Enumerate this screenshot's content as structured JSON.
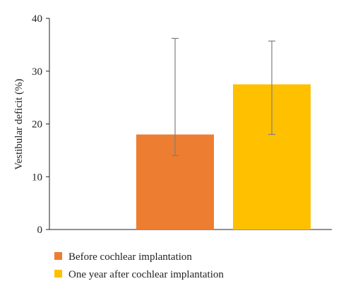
{
  "chart_data": {
    "type": "bar",
    "title": "",
    "xlabel": "",
    "ylabel": "Vestibular deficit (%)",
    "ylim": [
      0,
      40
    ],
    "yticks": [
      0,
      10,
      20,
      30,
      40
    ],
    "grid": false,
    "legend_position": "bottom-left",
    "series": [
      {
        "name": "Before cochlear implantation",
        "value": 18,
        "error_low": 14,
        "error_high": 36.2,
        "color": "#ed7d31"
      },
      {
        "name": "One year after cochlear implantation",
        "value": 27.5,
        "error_low": 18,
        "error_high": 35.7,
        "color": "#ffc000"
      }
    ]
  }
}
